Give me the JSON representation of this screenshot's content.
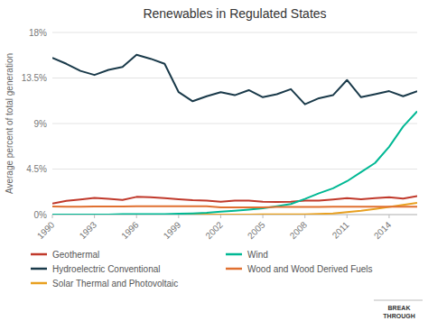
{
  "chart_data": {
    "type": "line",
    "title": "Renewables in Regulated States",
    "y_label": "Average percent of total generation",
    "x": [
      1990,
      1991,
      1992,
      1993,
      1994,
      1995,
      1996,
      1997,
      1998,
      1999,
      2000,
      2001,
      2002,
      2003,
      2004,
      2005,
      2006,
      2007,
      2008,
      2009,
      2010,
      2011,
      2012,
      2013,
      2014,
      2015,
      2016
    ],
    "series": [
      {
        "name": "Geothermal",
        "color": "#c0392b",
        "values": [
          1.1,
          1.35,
          1.5,
          1.65,
          1.55,
          1.45,
          1.75,
          1.72,
          1.62,
          1.52,
          1.42,
          1.38,
          1.28,
          1.38,
          1.38,
          1.28,
          1.25,
          1.28,
          1.38,
          1.38,
          1.5,
          1.62,
          1.52,
          1.62,
          1.72,
          1.58,
          1.82
        ]
      },
      {
        "name": "Hydroelectric Conventional",
        "color": "#1a3a4a",
        "values": [
          15.5,
          14.9,
          14.2,
          13.8,
          14.3,
          14.6,
          15.8,
          15.4,
          14.9,
          12.1,
          11.2,
          11.7,
          12.1,
          11.8,
          12.3,
          11.6,
          11.9,
          12.4,
          10.9,
          11.5,
          11.8,
          13.3,
          11.6,
          11.9,
          12.2,
          11.7,
          12.2
        ]
      },
      {
        "name": "Solar Thermal and Photovoltaic",
        "color": "#e8a020",
        "values": [
          0.01,
          0.01,
          0.01,
          0.01,
          0.01,
          0.01,
          0.01,
          0.01,
          0.01,
          0.01,
          0.01,
          0.01,
          0.01,
          0.01,
          0.01,
          0.02,
          0.02,
          0.02,
          0.03,
          0.07,
          0.12,
          0.25,
          0.38,
          0.55,
          0.75,
          0.95,
          1.15
        ]
      },
      {
        "name": "Wind",
        "color": "#00b894",
        "values": [
          0.01,
          0.01,
          0.01,
          0.01,
          0.01,
          0.04,
          0.04,
          0.04,
          0.04,
          0.08,
          0.12,
          0.18,
          0.28,
          0.38,
          0.5,
          0.62,
          0.82,
          1.05,
          1.55,
          2.1,
          2.6,
          3.3,
          4.2,
          5.1,
          6.7,
          8.7,
          10.2
        ]
      },
      {
        "name": "Wood and Wood Derived Fuels",
        "color": "#e07030",
        "values": [
          0.8,
          0.78,
          0.78,
          0.8,
          0.8,
          0.8,
          0.82,
          0.82,
          0.82,
          0.82,
          0.82,
          0.82,
          0.72,
          0.72,
          0.72,
          0.72,
          0.75,
          0.75,
          0.75,
          0.75,
          0.78,
          0.78,
          0.78,
          0.78,
          0.78,
          0.78,
          0.78
        ]
      }
    ],
    "xlim": [
      1990,
      2016
    ],
    "xticks": [
      1990,
      1993,
      1996,
      1999,
      2002,
      2005,
      2008,
      2011,
      2014
    ],
    "ylim": [
      0,
      18
    ],
    "yticks": [
      {
        "value": 0,
        "label": "0%"
      },
      {
        "value": 4.5,
        "label": "4.5%"
      },
      {
        "value": 9,
        "label": "9%"
      },
      {
        "value": 13.5,
        "label": "13.5%"
      },
      {
        "value": 18,
        "label": "18%"
      }
    ],
    "grid": true,
    "legend": "bottom",
    "annotation": "BREAK\nTHROUGH"
  }
}
